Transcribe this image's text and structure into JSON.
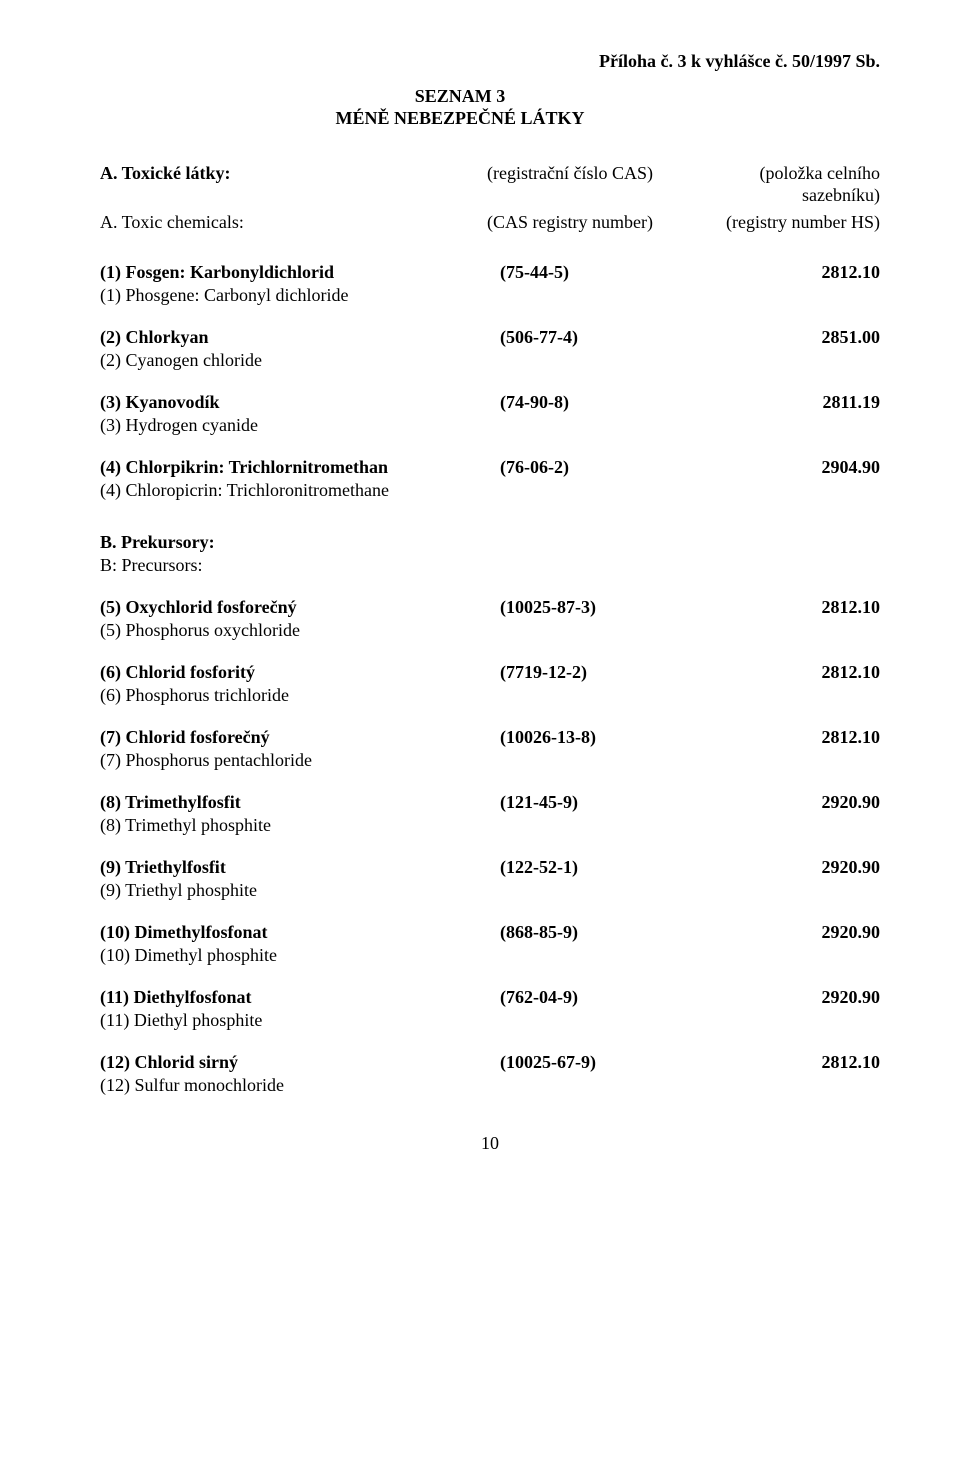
{
  "header_right": "Příloha č. 3 k vyhlášce č. 50/1997 Sb.",
  "heading_line1": "SEZNAM 3",
  "heading_line2": "MÉNĚ NEBEZPEČNÉ LÁTKY",
  "section_a": {
    "row1": {
      "label": "A. Toxické látky:",
      "col2": "(registrační číslo CAS)",
      "col3": "(položka celního sazebníku)"
    },
    "row2": {
      "label": "A. Toxic chemicals:",
      "col2": "(CAS registry number)",
      "col3": "(registry number HS)"
    }
  },
  "items_a": [
    {
      "bold": "(1) Fosgen: Karbonyldichlorid",
      "cas": "(75-44-5)",
      "hs": "2812.10",
      "sub": "(1) Phosgene: Carbonyl dichloride"
    },
    {
      "bold": "(2) Chlorkyan",
      "cas": "(506-77-4)",
      "hs": "2851.00",
      "sub": "(2) Cyanogen chloride"
    },
    {
      "bold": "(3) Kyanovodík",
      "cas": "(74-90-8)",
      "hs": "2811.19",
      "sub": "(3) Hydrogen cyanide"
    },
    {
      "bold": "(4) Chlorpikrin: Trichlornitromethan",
      "cas": "(76-06-2)",
      "hs": "2904.90",
      "sub": "(4) Chloropicrin: Trichloronitromethane"
    }
  ],
  "section_b": {
    "line1": "B. Prekursory:",
    "line2": "B: Precursors:"
  },
  "items_b": [
    {
      "bold": "(5) Oxychlorid fosforečný",
      "cas": "(10025-87-3)",
      "hs": "2812.10",
      "sub": "(5) Phosphorus oxychloride"
    },
    {
      "bold": "(6) Chlorid fosforitý",
      "cas": "(7719-12-2)",
      "hs": "2812.10",
      "sub": "(6) Phosphorus trichloride"
    },
    {
      "bold": "(7) Chlorid fosforečný",
      "cas": "(10026-13-8)",
      "hs": "2812.10",
      "sub": "(7) Phosphorus pentachloride"
    },
    {
      "bold": "(8) Trimethylfosfit",
      "cas": "(121-45-9)",
      "hs": "2920.90",
      "sub": "(8) Trimethyl phosphite"
    },
    {
      "bold": "(9) Triethylfosfit",
      "cas": "(122-52-1)",
      "hs": "2920.90",
      "sub": "(9) Triethyl phosphite"
    },
    {
      "bold": "(10) Dimethylfosfonat",
      "cas": "(868-85-9)",
      "hs": "2920.90",
      "sub": "(10) Dimethyl phosphite"
    },
    {
      "bold": "(11) Diethylfosfonat",
      "cas": "(762-04-9)",
      "hs": "2920.90",
      "sub": "(11) Diethyl phosphite"
    },
    {
      "bold": "(12) Chlorid sirný",
      "cas": "(10025-67-9)",
      "hs": "2812.10",
      "sub": "(12) Sulfur monochloride"
    }
  ],
  "page_number": "10"
}
